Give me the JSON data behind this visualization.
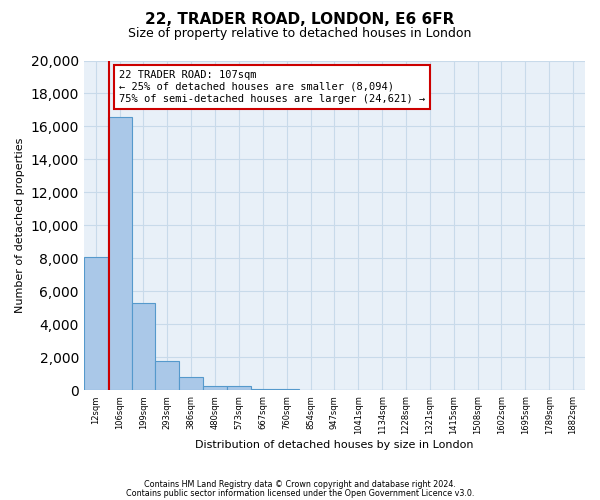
{
  "title": "22, TRADER ROAD, LONDON, E6 6FR",
  "subtitle": "Size of property relative to detached houses in London",
  "xlabel": "Distribution of detached houses by size in London",
  "ylabel": "Number of detached properties",
  "footnote1": "Contains HM Land Registry data © Crown copyright and database right 2024.",
  "footnote2": "Contains public sector information licensed under the Open Government Licence v3.0.",
  "bin_labels": [
    "12sqm",
    "106sqm",
    "199sqm",
    "293sqm",
    "386sqm",
    "480sqm",
    "573sqm",
    "667sqm",
    "760sqm",
    "854sqm",
    "947sqm",
    "1041sqm",
    "1134sqm",
    "1228sqm",
    "1321sqm",
    "1415sqm",
    "1508sqm",
    "1602sqm",
    "1695sqm",
    "1789sqm",
    "1882sqm"
  ],
  "bar_values": [
    8100,
    16600,
    5300,
    1800,
    800,
    300,
    280,
    80,
    60,
    30,
    10,
    5,
    5,
    2,
    2,
    2,
    1,
    1,
    1,
    1,
    0
  ],
  "bar_color": "#aac8e8",
  "bar_edge_color": "#5599cc",
  "ylim": [
    0,
    20000
  ],
  "yticks": [
    0,
    2000,
    4000,
    6000,
    8000,
    10000,
    12000,
    14000,
    16000,
    18000,
    20000
  ],
  "property_label": "22 TRADER ROAD: 107sqm",
  "annotation_line1": "← 25% of detached houses are smaller (8,094)",
  "annotation_line2": "75% of semi-detached houses are larger (24,621) →",
  "vline_color": "#cc0000",
  "annotation_box_color": "#cc0000",
  "grid_color": "#c8daea",
  "facecolor": "#e8f0f8"
}
